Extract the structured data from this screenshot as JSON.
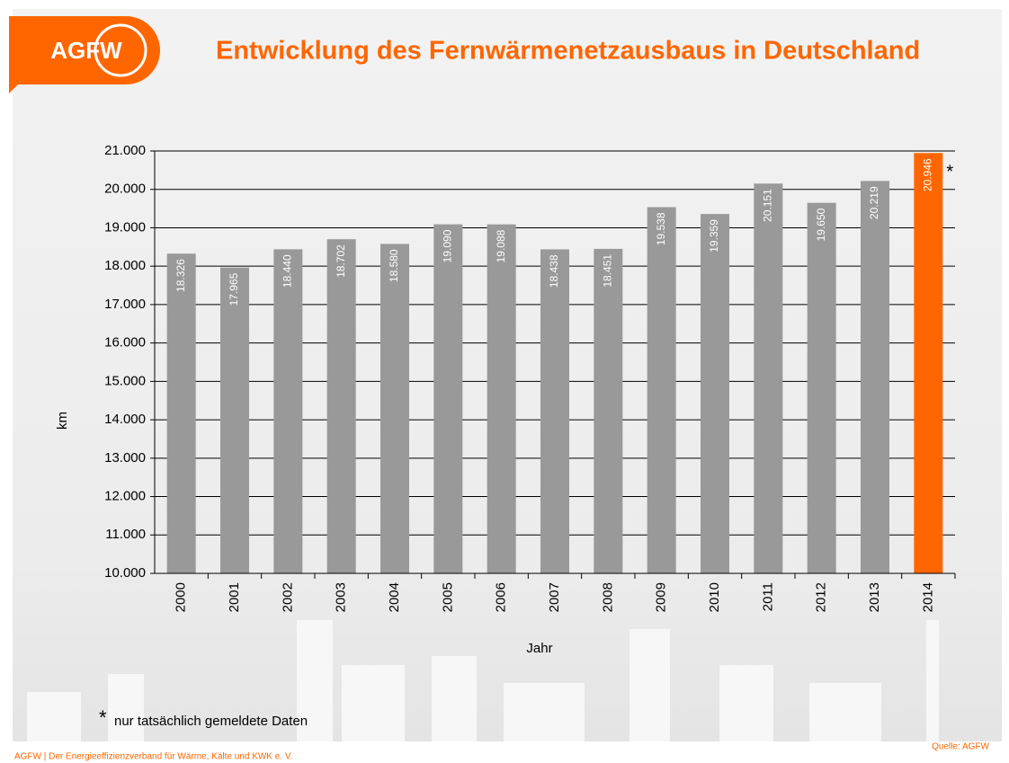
{
  "logo": "AGFW",
  "footer": "AGFW | Der Energieeffizienzverband für Wärme, Kälte und KWK e. V.",
  "source": "Quelle: AGFW",
  "chart_data": {
    "type": "bar",
    "title": "Entwicklung des Fernwärmenetzausbaus in Deutschland",
    "x_label": "Jahr",
    "y_label": "km",
    "categories": [
      "2000",
      "2001",
      "2002",
      "2003",
      "2004",
      "2005",
      "2006",
      "2007",
      "2008",
      "2009",
      "2010",
      "2011",
      "2012",
      "2013",
      "2014"
    ],
    "values": [
      18326,
      17965,
      18440,
      18702,
      18580,
      19090,
      19088,
      18438,
      18451,
      19538,
      19359,
      20151,
      19650,
      20219,
      20946
    ],
    "value_labels": [
      "18.326",
      "17.965",
      "18.440",
      "18.702",
      "18.580",
      "19.090",
      "19.088",
      "18.438",
      "18.451",
      "19.538",
      "19.359",
      "20.151",
      "19.650",
      "20.219",
      "20.946"
    ],
    "colors": [
      "#999999",
      "#999999",
      "#999999",
      "#999999",
      "#999999",
      "#999999",
      "#999999",
      "#999999",
      "#999999",
      "#999999",
      "#999999",
      "#999999",
      "#999999",
      "#999999",
      "#ff6600"
    ],
    "ylim": [
      10000,
      21000
    ],
    "yticks": [
      {
        "value": 10000,
        "label": "10.000"
      },
      {
        "value": 11000,
        "label": "11.000"
      },
      {
        "value": 12000,
        "label": "12.000"
      },
      {
        "value": 13000,
        "label": "13.000"
      },
      {
        "value": 14000,
        "label": "14.000"
      },
      {
        "value": 15000,
        "label": "15.000"
      },
      {
        "value": 16000,
        "label": "16.000"
      },
      {
        "value": 17000,
        "label": "17.000"
      },
      {
        "value": 18000,
        "label": "18.000"
      },
      {
        "value": 19000,
        "label": "19.000"
      },
      {
        "value": 20000,
        "label": "20.000"
      },
      {
        "value": 21000,
        "label": "21.000"
      }
    ],
    "grid": true,
    "annotation": "*",
    "footnote": {
      "marker": "*",
      "text": "nur tatsächlich gemeldete Daten"
    }
  }
}
